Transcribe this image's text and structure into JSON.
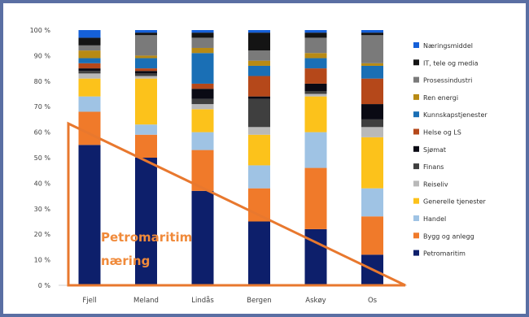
{
  "chart_data": {
    "type": "bar",
    "stacked": true,
    "percent": true,
    "categories": [
      "Fjell",
      "Meland",
      "Lindås",
      "Bergen",
      "Askøy",
      "Os"
    ],
    "yticks": [
      "0 %",
      "10 %",
      "20 %",
      "30 %",
      "40 %",
      "50 %",
      "60 %",
      "70 %",
      "80 %",
      "90 %",
      "100 %"
    ],
    "ylim": [
      0,
      100
    ],
    "grid": false,
    "legend_position": "right",
    "annotation": {
      "line1": "Petromaritim",
      "line2": "næring",
      "shape": "triangle",
      "color": "#e8782e"
    },
    "series": [
      {
        "name": "Petromaritim",
        "color": "#0d1f6b",
        "values": [
          55,
          50,
          37,
          25,
          22,
          12
        ]
      },
      {
        "name": "Bygg og anlegg",
        "color": "#f07a2a",
        "values": [
          13,
          9,
          16,
          13,
          24,
          15
        ]
      },
      {
        "name": "Handel",
        "color": "#9fc3e4",
        "values": [
          6,
          4,
          7,
          9,
          14,
          11
        ]
      },
      {
        "name": "Generelle tjenester",
        "color": "#fcc21b",
        "values": [
          7,
          18,
          9,
          12,
          14,
          20
        ]
      },
      {
        "name": "Reiseliv",
        "color": "#b9b9b9",
        "values": [
          2,
          1,
          2,
          3,
          1,
          4
        ]
      },
      {
        "name": "Finans",
        "color": "#3f3f3f",
        "values": [
          1,
          1,
          2,
          11,
          1,
          3
        ]
      },
      {
        "name": "Sjømat",
        "color": "#0a0a14",
        "values": [
          1,
          1,
          4,
          1,
          3,
          6
        ]
      },
      {
        "name": "Helse og LS",
        "color": "#b5481a",
        "values": [
          2,
          1,
          2,
          8,
          6,
          10
        ]
      },
      {
        "name": "Kunnskapstjenester",
        "color": "#1a6fb5",
        "values": [
          2,
          4,
          12,
          4,
          4,
          5
        ]
      },
      {
        "name": "Ren energi",
        "color": "#b88a14",
        "values": [
          3,
          1,
          2,
          2,
          2,
          1
        ]
      },
      {
        "name": "Prosessindustri",
        "color": "#7a7a7a",
        "values": [
          2,
          8,
          4,
          4,
          6,
          11
        ]
      },
      {
        "name": "IT, tele og media",
        "color": "#141414",
        "values": [
          3,
          1,
          2,
          7,
          2,
          1
        ]
      },
      {
        "name": "Næringsmiddel",
        "color": "#1560d8",
        "values": [
          3,
          1,
          1,
          1,
          1,
          1
        ]
      }
    ]
  }
}
